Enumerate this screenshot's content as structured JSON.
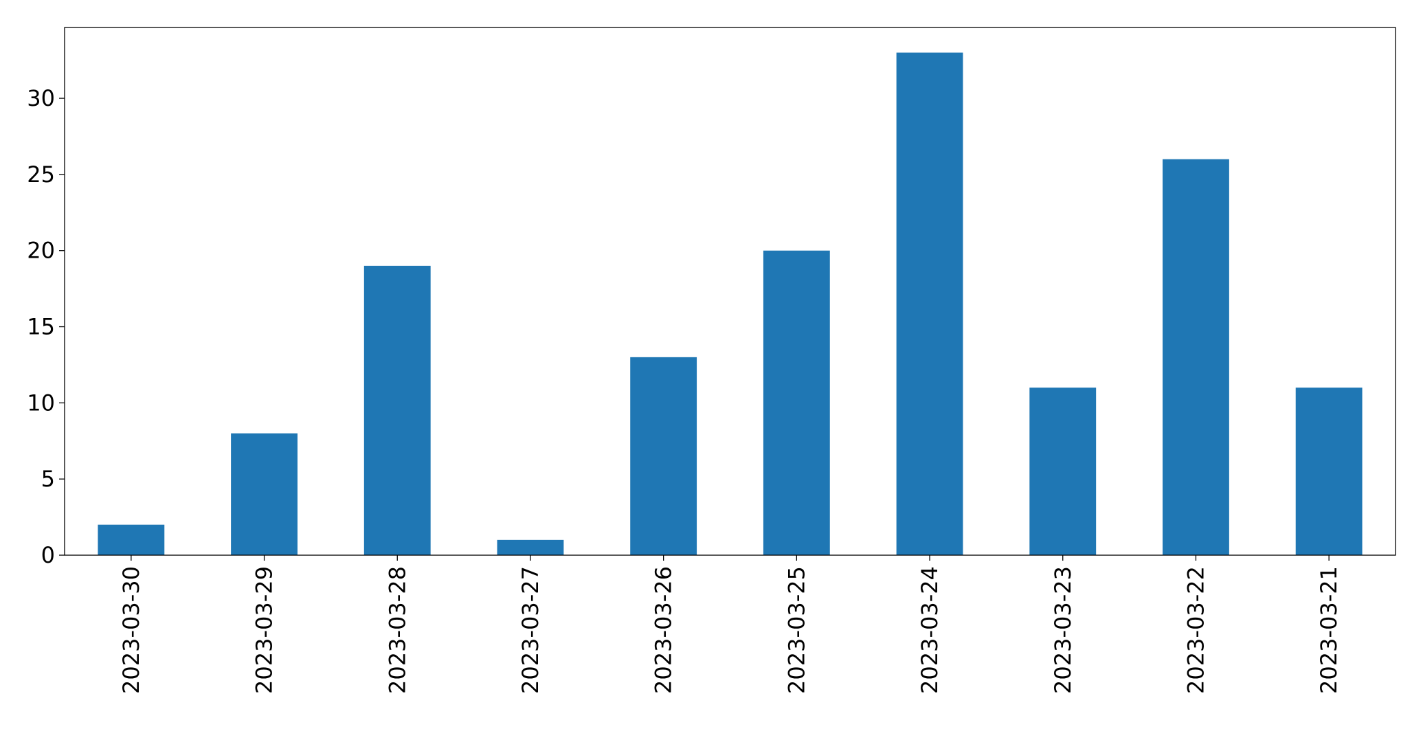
{
  "chart_data": {
    "type": "bar",
    "categories": [
      "2023-03-30",
      "2023-03-29",
      "2023-03-28",
      "2023-03-27",
      "2023-03-26",
      "2023-03-25",
      "2023-03-24",
      "2023-03-23",
      "2023-03-22",
      "2023-03-21"
    ],
    "values": [
      2,
      8,
      19,
      1,
      13,
      20,
      33,
      11,
      26,
      11
    ],
    "color": "#1f77b4",
    "ylim": [
      0,
      34.65
    ],
    "yticks": [
      0,
      5,
      10,
      15,
      20,
      25,
      30
    ],
    "grid": false
  }
}
